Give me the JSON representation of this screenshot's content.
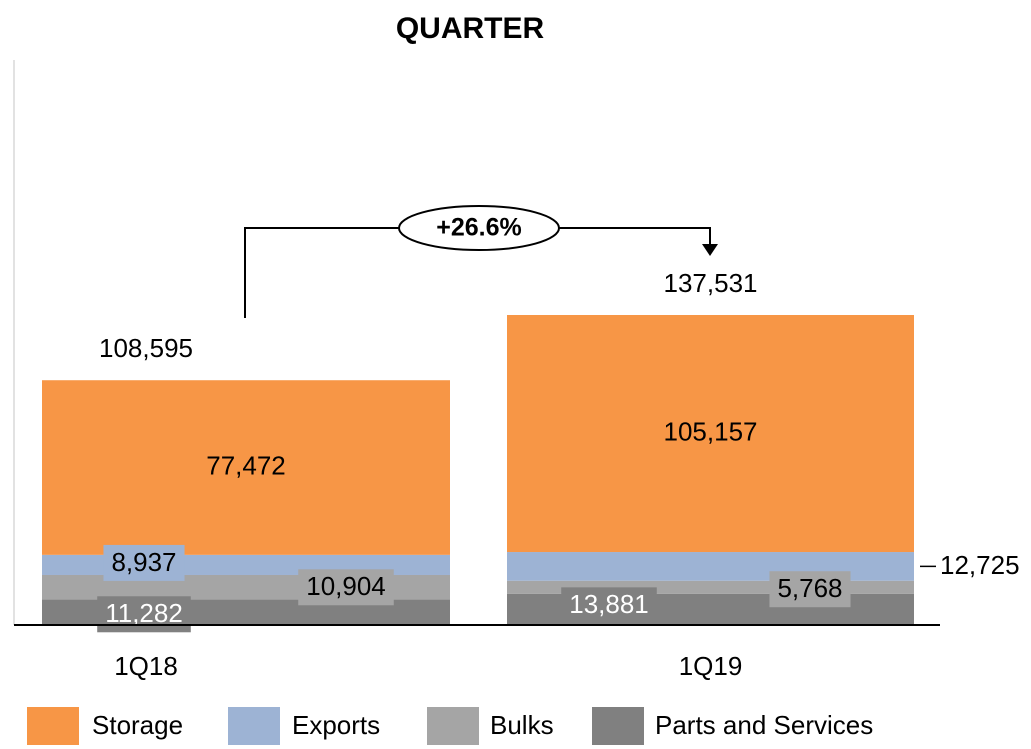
{
  "chart_data": {
    "type": "stacked_bar",
    "title": "QUARTER",
    "categories": [
      "1Q18",
      "1Q19"
    ],
    "series": [
      {
        "name": "Parts and Services",
        "color": "#808080",
        "values": [
          11282,
          13881
        ],
        "value_labels": [
          "11,282",
          "13,881"
        ]
      },
      {
        "name": "Bulks",
        "color": "#a5a5a5",
        "values": [
          10904,
          5768
        ],
        "value_labels": [
          "10,904",
          "5,768"
        ]
      },
      {
        "name": "Exports",
        "color": "#9db3d4",
        "values": [
          8937,
          12725
        ],
        "value_labels": [
          "8,937",
          "12,725"
        ]
      },
      {
        "name": "Storage",
        "color": "#f79646",
        "values": [
          77472,
          105157
        ],
        "value_labels": [
          "77,472",
          "105,157"
        ]
      }
    ],
    "totals": [
      108595,
      137531
    ],
    "total_labels": [
      "108,595",
      "137,531"
    ],
    "annotation": "+26.6%"
  }
}
